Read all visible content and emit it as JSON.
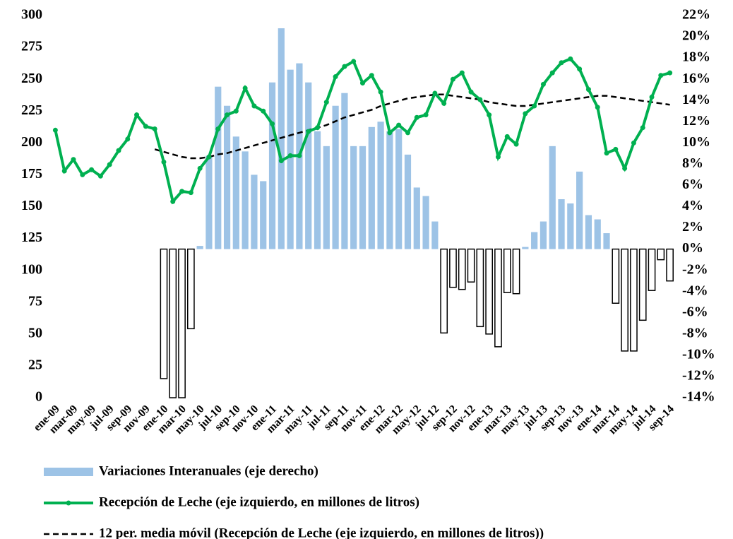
{
  "chart_data": {
    "type": "bar_line_combo",
    "categories": [
      "ene-09",
      null,
      "mar-09",
      null,
      "may-09",
      null,
      "jul-09",
      null,
      "sep-09",
      null,
      "nov-09",
      null,
      "ene-10",
      null,
      "mar-10",
      null,
      "may-10",
      null,
      "jul-10",
      null,
      "sep-10",
      null,
      "nov-10",
      null,
      "ene-11",
      null,
      "mar-11",
      null,
      "may-11",
      null,
      "jul-11",
      null,
      "sep-11",
      null,
      "nov-11",
      null,
      "ene-12",
      null,
      "mar-12",
      null,
      "may-12",
      null,
      "jul-12",
      null,
      "sep-12",
      null,
      "nov-12",
      null,
      "ene-13",
      null,
      "mar-13",
      null,
      "may-13",
      null,
      "jul-13",
      null,
      "sep-13",
      null,
      "nov-13",
      null,
      "ene-14",
      null,
      "mar-14",
      null,
      "may-14",
      null,
      "jul-14",
      null,
      "sep-14"
    ],
    "series": [
      {
        "name": "Variaciones Interanuales (eje derecho)",
        "kind": "bar",
        "axis": "y2",
        "color": "#9dc3e6",
        "negative_fill": "#ffffff",
        "negative_stroke": "#000000",
        "values": [
          null,
          null,
          null,
          null,
          null,
          null,
          null,
          null,
          null,
          null,
          null,
          null,
          -12.2,
          -14,
          -14,
          -7.5,
          0.3,
          8.8,
          15.3,
          13.5,
          10.6,
          9.2,
          7.0,
          6.4,
          15.7,
          20.8,
          16.9,
          17.5,
          15.7,
          11.1,
          9.7,
          13.5,
          14.7,
          9.7,
          9.7,
          11.5,
          12.0,
          11.1,
          11.3,
          8.9,
          5.8,
          5.0,
          2.6,
          -7.9,
          -3.6,
          -3.8,
          -3.1,
          -7.3,
          -8.0,
          -9.2,
          -4.1,
          -4.2,
          0.2,
          1.6,
          2.6,
          9.7,
          4.7,
          4.3,
          7.3,
          3.2,
          2.8,
          1.5,
          -5.1,
          -9.6,
          -9.6,
          -6.7,
          -3.9,
          -1.0,
          -3.0
        ]
      },
      {
        "name": "Recepción de Leche (eje izquierdo, en millones de litros)",
        "kind": "line_markers",
        "color": "#00b050",
        "values": [
          210,
          178,
          187,
          175,
          179,
          174,
          183,
          194,
          203,
          222,
          213,
          211,
          185,
          154,
          162,
          161,
          180,
          189,
          211,
          222,
          225,
          243,
          229,
          225,
          215,
          186,
          190,
          190,
          209,
          212,
          232,
          252,
          260,
          264,
          247,
          253,
          240,
          208,
          214,
          208,
          220,
          222,
          239,
          231,
          250,
          255,
          240,
          234,
          222,
          189,
          205,
          199,
          223,
          229,
          246,
          255,
          263,
          266,
          258,
          242,
          228,
          192,
          195,
          180,
          200,
          212,
          236,
          253,
          255
        ]
      },
      {
        "name": "12 per. media móvil (Recepción de Leche (eje izquierdo, en millones de litros))",
        "kind": "dashed_line",
        "color": "#000000",
        "values": [
          null,
          null,
          null,
          null,
          null,
          null,
          null,
          null,
          null,
          null,
          null,
          195,
          193,
          191,
          189,
          188,
          188,
          189,
          191,
          192,
          194,
          196,
          198,
          200,
          202,
          204,
          206,
          208,
          210,
          212,
          214,
          217,
          220,
          222,
          224,
          226,
          229,
          231,
          233,
          235,
          236,
          237,
          238,
          238,
          237,
          236,
          235,
          234,
          232,
          231,
          230,
          229,
          229,
          230,
          231,
          232,
          233,
          234,
          235,
          236,
          237,
          237,
          236,
          235,
          234,
          233,
          232,
          231,
          230
        ]
      }
    ],
    "ylim": [
      0,
      300
    ],
    "yticks": [
      0,
      25,
      50,
      75,
      100,
      125,
      150,
      175,
      200,
      225,
      250,
      275,
      300
    ],
    "y2lim": [
      -14,
      22
    ],
    "y2ticks": [
      {
        "value": -14,
        "label": "-14%"
      },
      {
        "value": -12,
        "label": "-12%"
      },
      {
        "value": -10,
        "label": "-10%"
      },
      {
        "value": -8,
        "label": "-8%"
      },
      {
        "value": -6,
        "label": "-6%"
      },
      {
        "value": -4,
        "label": "-4%"
      },
      {
        "value": -2,
        "label": "-2%"
      },
      {
        "value": 0,
        "label": "0%"
      },
      {
        "value": 2,
        "label": "2%"
      },
      {
        "value": 4,
        "label": "4%"
      },
      {
        "value": 6,
        "label": "6%"
      },
      {
        "value": 8,
        "label": "8%"
      },
      {
        "value": 10,
        "label": "10%"
      },
      {
        "value": 12,
        "label": "12%"
      },
      {
        "value": 14,
        "label": "14%"
      },
      {
        "value": 16,
        "label": "16%"
      },
      {
        "value": 18,
        "label": "18%"
      },
      {
        "value": 20,
        "label": "20%"
      },
      {
        "value": 22,
        "label": "22%"
      }
    ],
    "grid": false,
    "legend": "bottom"
  }
}
